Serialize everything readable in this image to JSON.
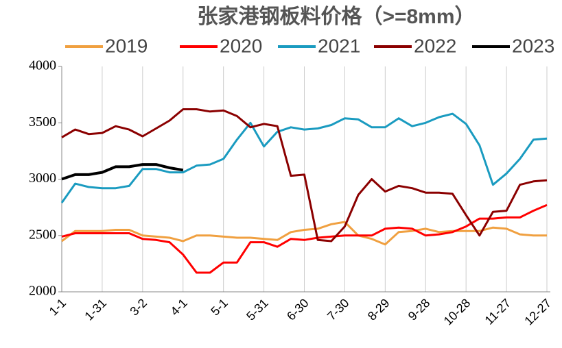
{
  "chart_data": {
    "type": "line",
    "title": "张家港钢板料价格（>=8mm）",
    "categories": [
      "1-1",
      null,
      null,
      "1-31",
      null,
      null,
      "3-2",
      null,
      null,
      "4-1",
      null,
      null,
      "5-1",
      null,
      null,
      "5-31",
      null,
      null,
      "6-30",
      null,
      null,
      "7-30",
      null,
      null,
      "8-29",
      null,
      null,
      "9-28",
      null,
      null,
      "10-28",
      null,
      null,
      "11-27",
      null,
      null,
      "12-27"
    ],
    "ylim": [
      2000,
      4000
    ],
    "yticks": [
      2000,
      2500,
      3000,
      3500,
      4000
    ],
    "grid": "x",
    "legend": "top",
    "series": [
      {
        "name": "2019",
        "color": "#f0a040",
        "values": [
          2450,
          2540,
          2540,
          2540,
          2550,
          2550,
          2500,
          2490,
          2480,
          2450,
          2500,
          2500,
          2490,
          2480,
          2480,
          2470,
          2460,
          2530,
          2550,
          2560,
          2600,
          2620,
          2500,
          2470,
          2420,
          2530,
          2540,
          2560,
          2530,
          2540,
          2540,
          2540,
          2570,
          2560,
          2510,
          2500,
          2500
        ]
      },
      {
        "name": "2020",
        "color": "#ff0000",
        "values": [
          2490,
          2520,
          2520,
          2520,
          2520,
          2520,
          2470,
          2460,
          2440,
          2330,
          2170,
          2170,
          2260,
          2260,
          2440,
          2440,
          2400,
          2470,
          2460,
          2480,
          2490,
          2500,
          2500,
          2500,
          2560,
          2570,
          2560,
          2500,
          2510,
          2530,
          2580,
          2650,
          2650,
          2660,
          2660,
          2720,
          2770
        ]
      },
      {
        "name": "2021",
        "color": "#1a9bc0",
        "values": [
          2790,
          2960,
          2930,
          2920,
          2920,
          2940,
          3090,
          3090,
          3060,
          3060,
          3120,
          3130,
          3180,
          3350,
          3500,
          3290,
          3420,
          3460,
          3440,
          3450,
          3480,
          3540,
          3530,
          3460,
          3460,
          3540,
          3470,
          3500,
          3550,
          3580,
          3490,
          3300,
          2950,
          3050,
          3180,
          3350,
          3360
        ]
      },
      {
        "name": "2022",
        "color": "#8b0000",
        "values": [
          3370,
          3440,
          3400,
          3410,
          3470,
          3440,
          3380,
          3450,
          3520,
          3620,
          3620,
          3600,
          3610,
          3560,
          3460,
          3490,
          3470,
          3030,
          3040,
          2460,
          2450,
          2580,
          2860,
          3000,
          2890,
          2940,
          2920,
          2880,
          2880,
          2870,
          2680,
          2500,
          2710,
          2720,
          2950,
          2980,
          2990
        ]
      },
      {
        "name": "2023",
        "color": "#000000",
        "values": [
          3000,
          3040,
          3040,
          3060,
          3110,
          3110,
          3130,
          3130,
          3100,
          3080,
          null,
          null,
          null,
          null,
          null,
          null,
          null,
          null,
          null,
          null,
          null,
          null,
          null,
          null,
          null,
          null,
          null,
          null,
          null,
          null,
          null,
          null,
          null,
          null,
          null,
          null,
          null
        ]
      }
    ]
  }
}
